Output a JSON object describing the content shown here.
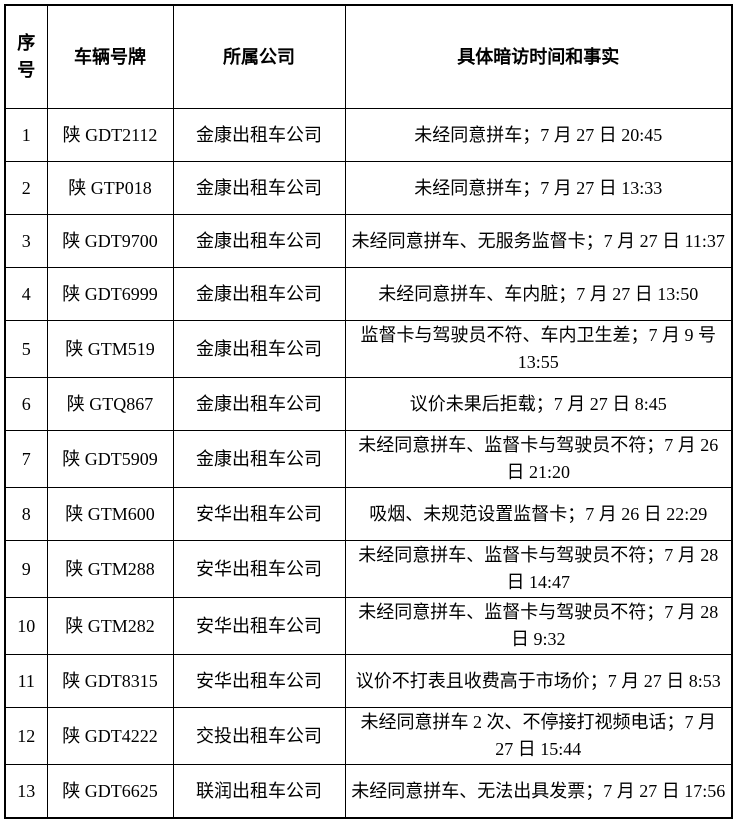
{
  "page": {
    "background_color": "#ffffff",
    "border_color": "#000000",
    "text_color": "#000000"
  },
  "table": {
    "headers": [
      "序号",
      "车辆号牌",
      "所属公司",
      "具体暗访时间和事实"
    ],
    "rows": [
      {
        "num": "1",
        "plate": "陕 GDT2112",
        "company": "金康出租车公司",
        "facts": "未经同意拼车；7 月 27 日 20:45"
      },
      {
        "num": "2",
        "plate": "陕 GTP018",
        "company": "金康出租车公司",
        "facts": "未经同意拼车；7 月 27 日 13:33"
      },
      {
        "num": "3",
        "plate": "陕 GDT9700",
        "company": "金康出租车公司",
        "facts": "未经同意拼车、无服务监督卡；7 月 27 日 11:37"
      },
      {
        "num": "4",
        "plate": "陕 GDT6999",
        "company": "金康出租车公司",
        "facts": "未经同意拼车、车内脏；7 月 27 日 13:50"
      },
      {
        "num": "5",
        "plate": "陕 GTM519",
        "company": "金康出租车公司",
        "facts": "监督卡与驾驶员不符、车内卫生差；7 月 9 号 13:55"
      },
      {
        "num": "6",
        "plate": "陕 GTQ867",
        "company": "金康出租车公司",
        "facts": "议价未果后拒载；7 月 27 日 8:45"
      },
      {
        "num": "7",
        "plate": "陕 GDT5909",
        "company": "金康出租车公司",
        "facts": "未经同意拼车、监督卡与驾驶员不符；7 月 26 日 21:20"
      },
      {
        "num": "8",
        "plate": "陕 GTM600",
        "company": "安华出租车公司",
        "facts": "吸烟、未规范设置监督卡；7 月 26 日 22:29"
      },
      {
        "num": "9",
        "plate": "陕 GTM288",
        "company": "安华出租车公司",
        "facts": "未经同意拼车、监督卡与驾驶员不符；7 月 28 日 14:47"
      },
      {
        "num": "10",
        "plate": "陕 GTM282",
        "company": "安华出租车公司",
        "facts": "未经同意拼车、监督卡与驾驶员不符；7 月 28 日 9:32"
      },
      {
        "num": "11",
        "plate": "陕 GDT8315",
        "company": "安华出租车公司",
        "facts": "议价不打表且收费高于市场价；7 月 27 日 8:53"
      },
      {
        "num": "12",
        "plate": "陕 GDT4222",
        "company": "交投出租车公司",
        "facts": "未经同意拼车 2 次、不停接打视频电话；7 月 27 日 15:44"
      },
      {
        "num": "13",
        "plate": "陕 GDT6625",
        "company": "联润出租车公司",
        "facts": "未经同意拼车、无法出具发票；7 月 27 日 17:56"
      }
    ]
  }
}
